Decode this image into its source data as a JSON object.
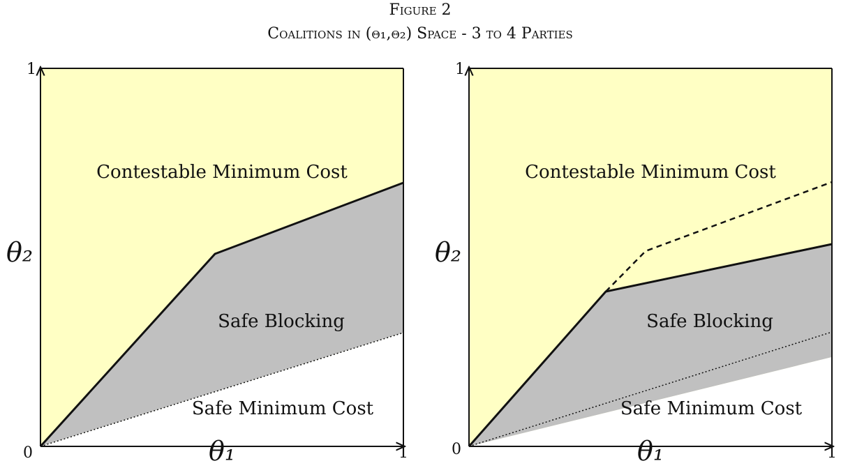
{
  "header": {
    "title": "Figure 2",
    "subtitle": "Coalitions in (θ₁,θ₂) Space - 3 to 4 Parties"
  },
  "panels": [
    {
      "upper_region": "Contestable Minimum Cost",
      "middle_region": "Safe Blocking",
      "lower_region": "Safe Minimum Cost",
      "x_label": "θ₁",
      "y_label": "θ₂",
      "origin_label": "0",
      "x_end_label": "1",
      "y_end_label": "1"
    },
    {
      "upper_region": "Contestable Minimum Cost",
      "middle_region": "Safe Blocking",
      "lower_region": "Safe Minimum Cost",
      "x_label": "θ₁",
      "y_label": "θ₂",
      "origin_label": "0",
      "x_end_label": "1",
      "y_end_label": "1"
    }
  ]
}
